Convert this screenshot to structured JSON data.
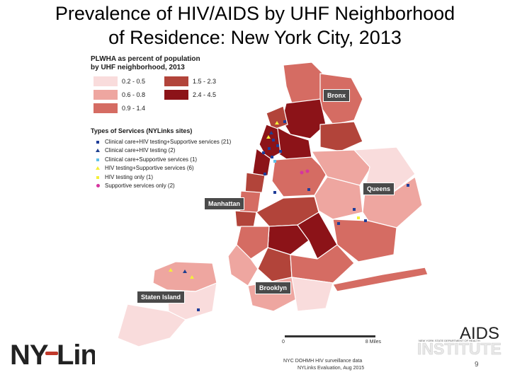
{
  "title": {
    "line1": "Prevalence of HIV/AIDS by UHF Neighborhood",
    "line2": "of Residence:  New York City, 2013"
  },
  "legend": {
    "title_line1": "PLWHA as percent of population",
    "title_line2": "by UHF neighborhood, 2013",
    "ranges": [
      {
        "label": "0.2 - 0.5",
        "color": "#f9dcdc"
      },
      {
        "label": "1.5 - 2.3",
        "color": "#b2443a"
      },
      {
        "label": "0.6 - 0.8",
        "color": "#eea6a0"
      },
      {
        "label": "2.4 - 4.5",
        "color": "#8c1318"
      },
      {
        "label": "0.9 - 1.4",
        "color": "#d56c63"
      }
    ]
  },
  "services": {
    "title": "Types of Services (NYLinks sites)",
    "items": [
      {
        "label": "Clinical care+HIV testing+Supportive services (21)",
        "marker": "square",
        "color": "#1f3d99"
      },
      {
        "label": "Clinical care+HIV testing (2)",
        "marker": "triangle",
        "color": "#1e3f8f"
      },
      {
        "label": "Clinical care+Supportive services (1)",
        "marker": "square",
        "color": "#5fc0e8"
      },
      {
        "label": "HIV testing+Supportive services (6)",
        "marker": "triangle",
        "color": "#f4ef3a"
      },
      {
        "label": "HIV testing only (1)",
        "marker": "square",
        "color": "#f4ef3a"
      },
      {
        "label": "Supportive services only (2)",
        "marker": "circle",
        "color": "#d6359f"
      }
    ]
  },
  "boroughs": {
    "bronx": "Bronx",
    "queens": "Queens",
    "manhattan": "Manhattan",
    "staten_island": "Staten Island",
    "brooklyn": "Brooklyn"
  },
  "scale": {
    "start": "0",
    "end": "8 Miles"
  },
  "source": {
    "line1": "NYC DOHMH HIV surveillance data",
    "line2": "NYLinks Evaluation, Aug 2015"
  },
  "logos": {
    "nylinks": "NY Links",
    "aids": "AIDS",
    "institute": "INSTITUTE",
    "aids_small": "NEW YORK STATE DEPARTMENT OF HEALTH"
  },
  "page_number": "9"
}
